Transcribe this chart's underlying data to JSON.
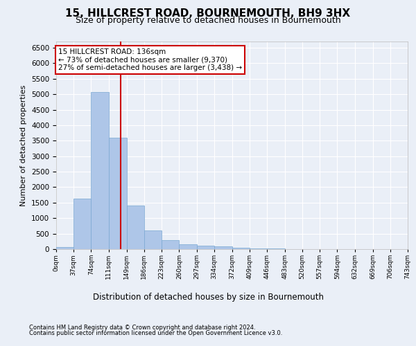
{
  "title": "15, HILLCREST ROAD, BOURNEMOUTH, BH9 3HX",
  "subtitle": "Size of property relative to detached houses in Bournemouth",
  "xlabel": "Distribution of detached houses by size in Bournemouth",
  "ylabel": "Number of detached properties",
  "footer_line1": "Contains HM Land Registry data © Crown copyright and database right 2024.",
  "footer_line2": "Contains public sector information licensed under the Open Government Licence v3.0.",
  "bar_edges": [
    0,
    37,
    74,
    111,
    149,
    186,
    223,
    260,
    297,
    334,
    372,
    409,
    446,
    483,
    520,
    557,
    594,
    632,
    669,
    706,
    743
  ],
  "bar_values": [
    60,
    1640,
    5070,
    3600,
    1400,
    600,
    290,
    150,
    120,
    90,
    50,
    30,
    15,
    8,
    4,
    3,
    2,
    1,
    1,
    0
  ],
  "bar_color": "#aec6e8",
  "bar_edgecolor": "#7aa8d2",
  "property_size": 136,
  "red_line_x": 136,
  "annotation_text": "15 HILLCREST ROAD: 136sqm\n← 73% of detached houses are smaller (9,370)\n27% of semi-detached houses are larger (3,438) →",
  "annotation_box_color": "#ffffff",
  "annotation_box_edgecolor": "#cc0000",
  "ylim": [
    0,
    6700
  ],
  "yticks": [
    0,
    500,
    1000,
    1500,
    2000,
    2500,
    3000,
    3500,
    4000,
    4500,
    5000,
    5500,
    6000,
    6500
  ],
  "bg_color": "#eaeff7",
  "plot_bg_color": "#eaeff7",
  "grid_color": "#ffffff",
  "tick_labels": [
    "0sqm",
    "37sqm",
    "74sqm",
    "111sqm",
    "149sqm",
    "186sqm",
    "223sqm",
    "260sqm",
    "297sqm",
    "334sqm",
    "372sqm",
    "409sqm",
    "446sqm",
    "483sqm",
    "520sqm",
    "557sqm",
    "594sqm",
    "632sqm",
    "669sqm",
    "706sqm",
    "743sqm"
  ],
  "title_fontsize": 11,
  "subtitle_fontsize": 9
}
